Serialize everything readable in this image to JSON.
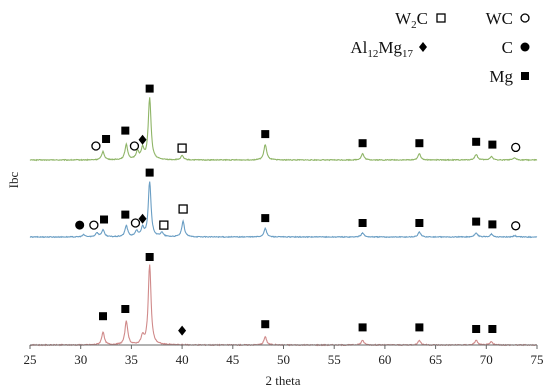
{
  "chart_data": {
    "type": "line",
    "title": "",
    "xlabel": "2 theta",
    "ylabel": "Ibc",
    "xlim": [
      25,
      75
    ],
    "x_ticks": [
      25,
      30,
      35,
      40,
      45,
      50,
      55,
      60,
      65,
      70,
      75
    ],
    "grid": false,
    "legend_position": "top-right",
    "legend": [
      {
        "label_main": "W",
        "label_sub": "2",
        "label_tail": "C",
        "marker": "open-square"
      },
      {
        "label_main": "WC",
        "label_sub": "",
        "label_tail": "",
        "marker": "open-circle"
      },
      {
        "label_main": "Al",
        "label_sub": "12",
        "label_tail": "Mg",
        "label_sub2": "17",
        "marker": "filled-diamond"
      },
      {
        "label_main": "C",
        "label_sub": "",
        "label_tail": "",
        "marker": "filled-circle"
      },
      {
        "label_main": "Mg",
        "label_sub": "",
        "label_tail": "",
        "marker": "filled-square"
      }
    ],
    "series": [
      {
        "color": "#8fb567",
        "baseline": 0.0,
        "peaks": [
          {
            "x": 32.2,
            "h": 0.12
          },
          {
            "x": 34.5,
            "h": 0.22
          },
          {
            "x": 35.6,
            "h": 0.12
          },
          {
            "x": 36.1,
            "h": 0.15
          },
          {
            "x": 36.8,
            "h": 0.88
          },
          {
            "x": 40.0,
            "h": 0.06
          },
          {
            "x": 48.2,
            "h": 0.22
          },
          {
            "x": 57.8,
            "h": 0.09
          },
          {
            "x": 63.4,
            "h": 0.09
          },
          {
            "x": 69.0,
            "h": 0.08
          },
          {
            "x": 70.5,
            "h": 0.05
          },
          {
            "x": 72.8,
            "h": 0.03
          }
        ],
        "markers": [
          {
            "x": 31.5,
            "y": 0.2,
            "marker": "open-circle"
          },
          {
            "x": 32.5,
            "y": 0.3,
            "marker": "filled-square"
          },
          {
            "x": 34.4,
            "y": 0.42,
            "marker": "filled-square"
          },
          {
            "x": 35.3,
            "y": 0.2,
            "marker": "open-circle"
          },
          {
            "x": 36.1,
            "y": 0.29,
            "marker": "filled-diamond"
          },
          {
            "x": 36.8,
            "y": 1.02,
            "marker": "filled-square"
          },
          {
            "x": 40.0,
            "y": 0.17,
            "marker": "open-square"
          },
          {
            "x": 48.2,
            "y": 0.37,
            "marker": "filled-square"
          },
          {
            "x": 57.8,
            "y": 0.24,
            "marker": "filled-square"
          },
          {
            "x": 63.4,
            "y": 0.24,
            "marker": "filled-square"
          },
          {
            "x": 69.0,
            "y": 0.26,
            "marker": "filled-square"
          },
          {
            "x": 70.6,
            "y": 0.22,
            "marker": "filled-square"
          },
          {
            "x": 72.9,
            "y": 0.18,
            "marker": "open-circle"
          }
        ]
      },
      {
        "color": "#6a9ec4",
        "baseline": 0.0,
        "peaks": [
          {
            "x": 30.3,
            "h": 0.03
          },
          {
            "x": 31.6,
            "h": 0.06
          },
          {
            "x": 32.2,
            "h": 0.1
          },
          {
            "x": 34.5,
            "h": 0.16
          },
          {
            "x": 35.5,
            "h": 0.08
          },
          {
            "x": 36.1,
            "h": 0.12
          },
          {
            "x": 36.8,
            "h": 0.78
          },
          {
            "x": 38.0,
            "h": 0.06
          },
          {
            "x": 40.1,
            "h": 0.22
          },
          {
            "x": 48.2,
            "h": 0.12
          },
          {
            "x": 57.8,
            "h": 0.06
          },
          {
            "x": 63.4,
            "h": 0.07
          },
          {
            "x": 69.0,
            "h": 0.06
          },
          {
            "x": 70.5,
            "h": 0.04
          },
          {
            "x": 72.8,
            "h": 0.02
          }
        ],
        "markers": [
          {
            "x": 29.9,
            "y": 0.17,
            "marker": "filled-circle"
          },
          {
            "x": 31.3,
            "y": 0.17,
            "marker": "open-circle"
          },
          {
            "x": 32.3,
            "y": 0.25,
            "marker": "filled-square"
          },
          {
            "x": 34.4,
            "y": 0.32,
            "marker": "filled-square"
          },
          {
            "x": 35.4,
            "y": 0.2,
            "marker": "open-circle"
          },
          {
            "x": 36.1,
            "y": 0.26,
            "marker": "filled-diamond"
          },
          {
            "x": 36.8,
            "y": 0.92,
            "marker": "filled-square"
          },
          {
            "x": 38.2,
            "y": 0.17,
            "marker": "open-square"
          },
          {
            "x": 40.1,
            "y": 0.4,
            "marker": "open-square"
          },
          {
            "x": 48.2,
            "y": 0.27,
            "marker": "filled-square"
          },
          {
            "x": 57.8,
            "y": 0.2,
            "marker": "filled-square"
          },
          {
            "x": 63.4,
            "y": 0.2,
            "marker": "filled-square"
          },
          {
            "x": 69.0,
            "y": 0.22,
            "marker": "filled-square"
          },
          {
            "x": 70.6,
            "y": 0.18,
            "marker": "filled-square"
          },
          {
            "x": 72.9,
            "y": 0.16,
            "marker": "open-circle"
          }
        ]
      },
      {
        "color": "#d08a8a",
        "baseline": 0.0,
        "peaks": [
          {
            "x": 32.2,
            "h": 0.16
          },
          {
            "x": 34.5,
            "h": 0.3
          },
          {
            "x": 36.1,
            "h": 0.1
          },
          {
            "x": 36.8,
            "h": 1.0
          },
          {
            "x": 48.2,
            "h": 0.1
          },
          {
            "x": 57.8,
            "h": 0.06
          },
          {
            "x": 63.4,
            "h": 0.06
          },
          {
            "x": 69.0,
            "h": 0.06
          },
          {
            "x": 70.5,
            "h": 0.04
          }
        ],
        "markers": [
          {
            "x": 32.2,
            "y": 0.36,
            "marker": "filled-square"
          },
          {
            "x": 34.4,
            "y": 0.45,
            "marker": "filled-square"
          },
          {
            "x": 36.8,
            "y": 1.1,
            "marker": "filled-square"
          },
          {
            "x": 40.0,
            "y": 0.18,
            "marker": "filled-diamond"
          },
          {
            "x": 48.2,
            "y": 0.26,
            "marker": "filled-square"
          },
          {
            "x": 57.8,
            "y": 0.22,
            "marker": "filled-square"
          },
          {
            "x": 63.4,
            "y": 0.22,
            "marker": "filled-square"
          },
          {
            "x": 69.0,
            "y": 0.2,
            "marker": "filled-square"
          },
          {
            "x": 70.6,
            "y": 0.2,
            "marker": "filled-square"
          }
        ]
      }
    ]
  }
}
